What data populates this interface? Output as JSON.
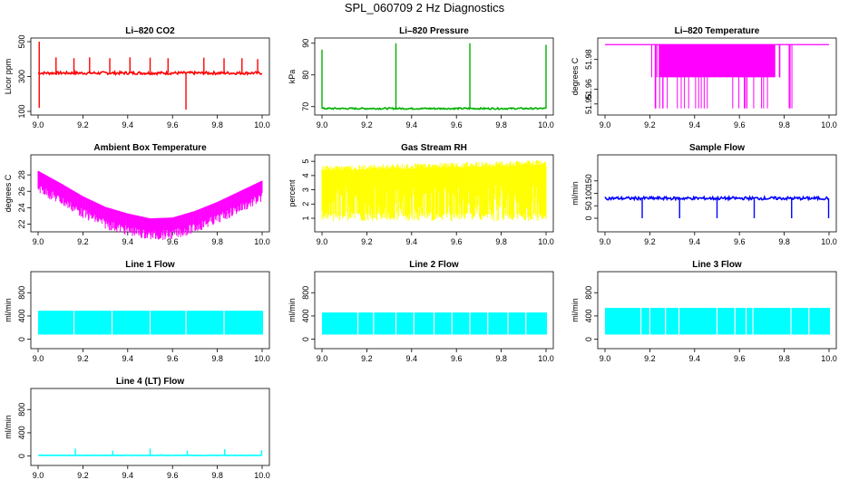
{
  "main_title": "SPL_060709  2 Hz Diagnostics",
  "chart_data": [
    {
      "type": "line",
      "title": "Li–820 CO2",
      "ylabel": "Licor ppm",
      "color": "#ff0000",
      "xlim": [
        9.0,
        10.0
      ],
      "ylim": [
        100,
        500
      ],
      "xticks": [
        "9.0",
        "9.2",
        "9.4",
        "9.6",
        "9.8",
        "10.0"
      ],
      "yticks": [
        "100",
        "300",
        "500"
      ],
      "baseline": 320,
      "noise": 8,
      "spikes": [
        {
          "x": 9.08,
          "y": 410
        },
        {
          "x": 9.16,
          "y": 405
        },
        {
          "x": 9.23,
          "y": 410
        },
        {
          "x": 9.32,
          "y": 405
        },
        {
          "x": 9.41,
          "y": 410
        },
        {
          "x": 9.5,
          "y": 408
        },
        {
          "x": 9.58,
          "y": 405
        },
        {
          "x": 9.66,
          "y": 110
        },
        {
          "x": 9.74,
          "y": 408
        },
        {
          "x": 9.83,
          "y": 405
        },
        {
          "x": 9.91,
          "y": 405
        },
        {
          "x": 9.98,
          "y": 400
        },
        {
          "x": 9.005,
          "y": 520
        },
        {
          "x": 9.005,
          "y": 120
        }
      ]
    },
    {
      "type": "line",
      "title": "Li–820 Pressure",
      "ylabel": "kPa",
      "color": "#00b000",
      "xlim": [
        9.0,
        10.0
      ],
      "ylim": [
        68.5,
        90.5
      ],
      "xticks": [
        "9.0",
        "9.2",
        "9.4",
        "9.6",
        "9.8",
        "10.0"
      ],
      "yticks": [
        "70",
        "80",
        "90"
      ],
      "baseline": 69.4,
      "noise": 0.25,
      "spikes": [
        {
          "x": 9.0,
          "y": 88
        },
        {
          "x": 9.33,
          "y": 90
        },
        {
          "x": 9.66,
          "y": 90
        },
        {
          "x": 10.0,
          "y": 89.5
        }
      ]
    },
    {
      "type": "band",
      "title": "Li–820 Temperature",
      "ylabel": "degrees C",
      "color": "#ff00ff",
      "xlim": [
        9.0,
        10.0
      ],
      "ylim": [
        51.945,
        51.992
      ],
      "xticks": [
        "9.0",
        "9.2",
        "9.4",
        "9.6",
        "9.8",
        "10.0"
      ],
      "yticks": [
        "51.95",
        "51.96",
        "51.98"
      ],
      "baseline": 51.99,
      "band_low": 51.968,
      "band_range": [
        9.24,
        9.76
      ]
    },
    {
      "type": "area",
      "title": "Ambient Box Temperature",
      "ylabel": "degrees C",
      "color": "#ff00ff",
      "xlim": [
        9.0,
        10.0
      ],
      "ylim": [
        21.5,
        30
      ],
      "xticks": [
        "9.0",
        "9.2",
        "9.4",
        "9.6",
        "9.8",
        "10.0"
      ],
      "yticks": [
        "22",
        "24",
        "26",
        "28"
      ],
      "curve": [
        [
          9.0,
          28.5
        ],
        [
          9.1,
          27
        ],
        [
          9.2,
          25.4
        ],
        [
          9.3,
          24.1
        ],
        [
          9.4,
          23.3
        ],
        [
          9.5,
          22.7
        ],
        [
          9.6,
          22.8
        ],
        [
          9.7,
          23.6
        ],
        [
          9.8,
          24.7
        ],
        [
          9.9,
          26
        ],
        [
          10.0,
          27.3
        ]
      ],
      "thickness": 1.5
    },
    {
      "type": "area",
      "title": "Gas Stream RH",
      "ylabel": "percent",
      "color": "#ffff00",
      "xlim": [
        9.0,
        10.0
      ],
      "ylim": [
        0.3,
        5.2
      ],
      "xticks": [
        "9.0",
        "9.2",
        "9.4",
        "9.6",
        "9.8",
        "10.0"
      ],
      "yticks": [
        "1",
        "2",
        "3",
        "4",
        "5"
      ],
      "curve": [
        [
          9.0,
          4.5
        ],
        [
          10.0,
          4.9
        ]
      ],
      "low": 0.8
    },
    {
      "type": "line",
      "title": "Sample Flow",
      "ylabel": "ml/min",
      "color": "#0000ff",
      "xlim": [
        9.0,
        10.0
      ],
      "ylim": [
        -40,
        240
      ],
      "xticks": [
        "9.0",
        "9.2",
        "9.4",
        "9.6",
        "9.8",
        "10.0"
      ],
      "yticks": [
        "0",
        "50",
        "100",
        "150"
      ],
      "baseline": 80,
      "noise": 6,
      "spikes": [
        {
          "x": 9.166,
          "y": 0
        },
        {
          "x": 9.333,
          "y": 0
        },
        {
          "x": 9.5,
          "y": 0
        },
        {
          "x": 9.666,
          "y": 0
        },
        {
          "x": 9.833,
          "y": 0
        },
        {
          "x": 9.998,
          "y": 0
        }
      ]
    },
    {
      "type": "flow",
      "title": "Line 1 Flow",
      "ylabel": "ml/min",
      "color": "#00ffff",
      "xlim": [
        9.0,
        10.0
      ],
      "ylim": [
        -100,
        1100
      ],
      "xticks": [
        "9.0",
        "9.2",
        "9.4",
        "9.6",
        "9.8",
        "10.0"
      ],
      "yticks": [
        "0",
        "400",
        "800"
      ],
      "top": 490,
      "low": 80,
      "gaps": [
        9.16,
        9.33,
        9.5,
        9.66,
        9.83
      ]
    },
    {
      "type": "flow",
      "title": "Line 2 Flow",
      "ylabel": "ml/min",
      "color": "#00ffff",
      "xlim": [
        9.0,
        10.0
      ],
      "ylim": [
        -100,
        1100
      ],
      "xticks": [
        "9.0",
        "9.2",
        "9.4",
        "9.6",
        "9.8",
        "10.0"
      ],
      "yticks": [
        "0",
        "400",
        "800"
      ],
      "top": 460,
      "low": 80,
      "gaps": [
        9.16,
        9.23,
        9.33,
        9.41,
        9.5,
        9.58,
        9.66,
        9.74,
        9.83,
        9.91
      ]
    },
    {
      "type": "flow",
      "title": "Line 3 Flow",
      "ylabel": "ml/min",
      "color": "#00ffff",
      "xlim": [
        9.0,
        10.0
      ],
      "ylim": [
        -100,
        1100
      ],
      "xticks": [
        "9.0",
        "9.2",
        "9.4",
        "9.6",
        "9.8",
        "10.0"
      ],
      "yticks": [
        "0",
        "400",
        "800"
      ],
      "top": 540,
      "low": 80,
      "gaps": [
        9.16,
        9.2,
        9.27,
        9.33,
        9.5,
        9.58,
        9.63,
        9.66,
        9.83,
        9.91
      ]
    },
    {
      "type": "line",
      "title": "Line 4 (LT) Flow",
      "ylabel": "ml/min",
      "color": "#00ffff",
      "xlim": [
        9.0,
        10.0
      ],
      "ylim": [
        -100,
        1100
      ],
      "xticks": [
        "9.0",
        "9.2",
        "9.4",
        "9.6",
        "9.8",
        "10.0"
      ],
      "yticks": [
        "0",
        "400",
        "800"
      ],
      "baseline": 12,
      "noise": 3,
      "spikes": [
        {
          "x": 9.166,
          "y": 130
        },
        {
          "x": 9.333,
          "y": 90
        },
        {
          "x": 9.5,
          "y": 130
        },
        {
          "x": 9.666,
          "y": 90
        },
        {
          "x": 9.833,
          "y": 120
        },
        {
          "x": 9.998,
          "y": 100
        }
      ]
    }
  ]
}
